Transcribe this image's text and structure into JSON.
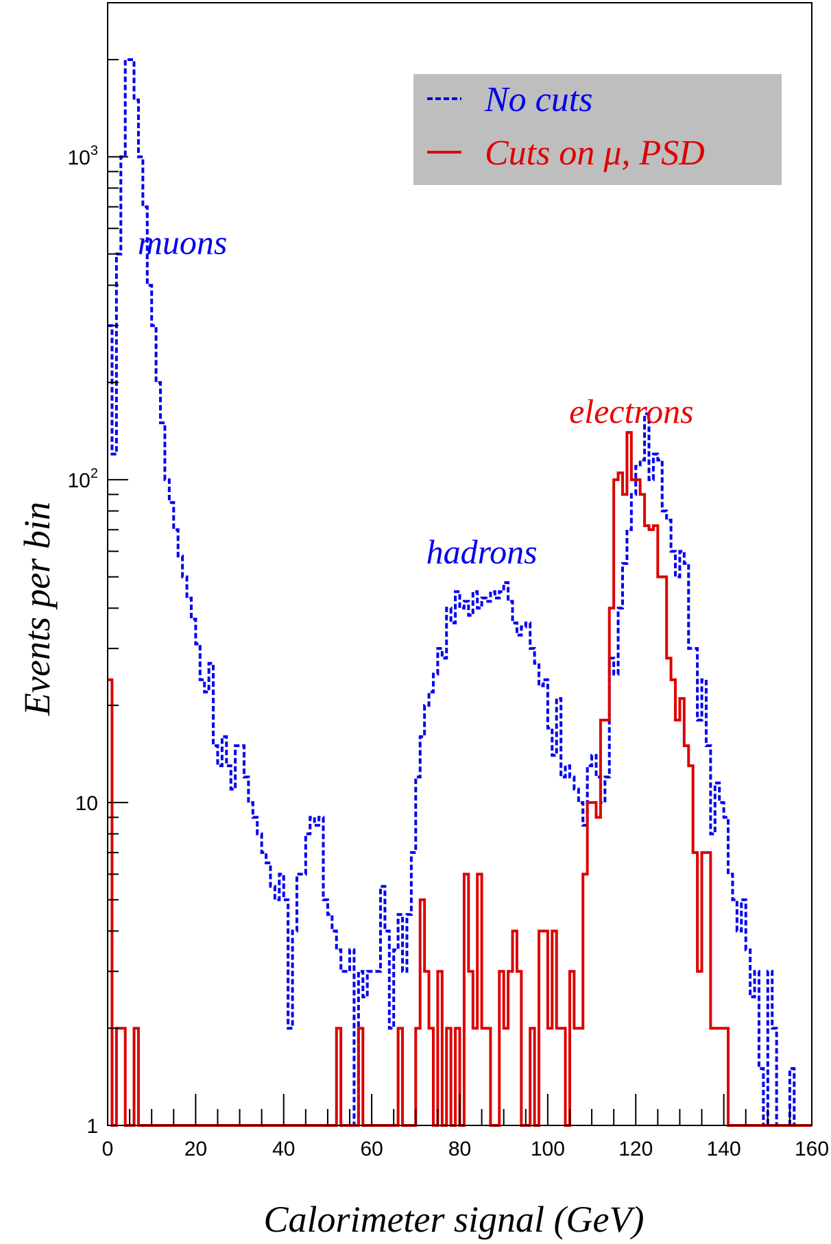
{
  "chart_data": {
    "type": "histogram",
    "x_scale": "linear",
    "y_scale": "log",
    "xlim": [
      0,
      160
    ],
    "ylim": [
      1,
      3000
    ],
    "xlabel": "Calorimeter signal (GeV)",
    "ylabel": "Events per bin",
    "x_ticks": [
      "0",
      "20",
      "40",
      "60",
      "80",
      "100",
      "120",
      "140",
      "160"
    ],
    "y_ticks": [
      {
        "value": 1,
        "label": "1"
      },
      {
        "value": 10,
        "label": "10"
      },
      {
        "value": 100,
        "label": "10",
        "sup": "2"
      },
      {
        "value": 1000,
        "label": "10",
        "sup": "3"
      }
    ],
    "bin_width": 1,
    "legend": {
      "position": "top-right",
      "background": "#bebebe",
      "entries": [
        {
          "label": "No cuts",
          "color": "#0000ee",
          "style": "dashed"
        },
        {
          "label": "Cuts on μ, PSD",
          "color": "#dd0000",
          "style": "solid"
        }
      ]
    },
    "annotations": [
      {
        "text": "muons",
        "x": 17,
        "y": 500,
        "color": "#0000ee"
      },
      {
        "text": "hadrons",
        "x": 85,
        "y": 55,
        "color": "#0000ee"
      },
      {
        "text": "electrons",
        "x": 119,
        "y": 150,
        "color": "#ee0000"
      }
    ],
    "series": [
      {
        "name": "No cuts",
        "color": "#0000ee",
        "style": "dashed",
        "x_start": 0,
        "values": [
          300,
          120,
          500,
          1000,
          2000,
          2000,
          1500,
          1000,
          700,
          400,
          300,
          200,
          150,
          100,
          85,
          70,
          58,
          50,
          43,
          37,
          31,
          24,
          22,
          27,
          15,
          13,
          16,
          13,
          11,
          15,
          15,
          12,
          10,
          9,
          8,
          7,
          6.5,
          5.5,
          5,
          6,
          5,
          2,
          4,
          6,
          6,
          8,
          9,
          8.5,
          9,
          5,
          4.5,
          4,
          3.5,
          3,
          3,
          3.5,
          1,
          3,
          2.5,
          3,
          3,
          3,
          5.5,
          4,
          2,
          3.5,
          4.5,
          3,
          4.5,
          7,
          12,
          16,
          20,
          22,
          25,
          30,
          28,
          40,
          36,
          45,
          40,
          42,
          38,
          45,
          40,
          43,
          42,
          45,
          43,
          45,
          48,
          42,
          36,
          33,
          35,
          36,
          30,
          27,
          23,
          24,
          17,
          14,
          21,
          12,
          13,
          12,
          11,
          10,
          8.5,
          13,
          14,
          12,
          10,
          12,
          28,
          25,
          40,
          55,
          70,
          90,
          110,
          115,
          160,
          100,
          120,
          115,
          80,
          75,
          60,
          50,
          60,
          55,
          30,
          30,
          18,
          24,
          15,
          8,
          11.5,
          10,
          9,
          6,
          5,
          4,
          5,
          3.5,
          2.5,
          3,
          1.5,
          1,
          3,
          2,
          1,
          1,
          1,
          1.5,
          1,
          1,
          1,
          1
        ]
      },
      {
        "name": "Cuts on μ, PSD",
        "color": "#dd0000",
        "style": "solid",
        "x_start": 0,
        "values": [
          24,
          1,
          2,
          2,
          1,
          1,
          2,
          1,
          1,
          1,
          1,
          1,
          1,
          1,
          1,
          1,
          1,
          1,
          1,
          1,
          1,
          1,
          1,
          1,
          1,
          1,
          1,
          1,
          1,
          1,
          1,
          1,
          1,
          1,
          1,
          1,
          1,
          1,
          1,
          1,
          1,
          1,
          1,
          1,
          1,
          1,
          1,
          1,
          1,
          1,
          1,
          1,
          2,
          1,
          1,
          1,
          1,
          2,
          1,
          1,
          1,
          1,
          1,
          1,
          1,
          1,
          2,
          1,
          1,
          1,
          2,
          5,
          3,
          2,
          1,
          3,
          1,
          2,
          1,
          2,
          1,
          6,
          3,
          2,
          6,
          2,
          2,
          1,
          1,
          3,
          2,
          3,
          4,
          3,
          1,
          1,
          2,
          1,
          4,
          4,
          2,
          4,
          2,
          2,
          1,
          3,
          2,
          2,
          6,
          10,
          10,
          9,
          18,
          18,
          40,
          100,
          105,
          90,
          140,
          100,
          100,
          90,
          72,
          70,
          72,
          50,
          50,
          28,
          24,
          18,
          21,
          15,
          13,
          7,
          3,
          7,
          7,
          2,
          2,
          2,
          2,
          1,
          1,
          1,
          1,
          1,
          1,
          1,
          1,
          1,
          1,
          1,
          1,
          1,
          1,
          1,
          1,
          1,
          1,
          1
        ]
      }
    ]
  }
}
